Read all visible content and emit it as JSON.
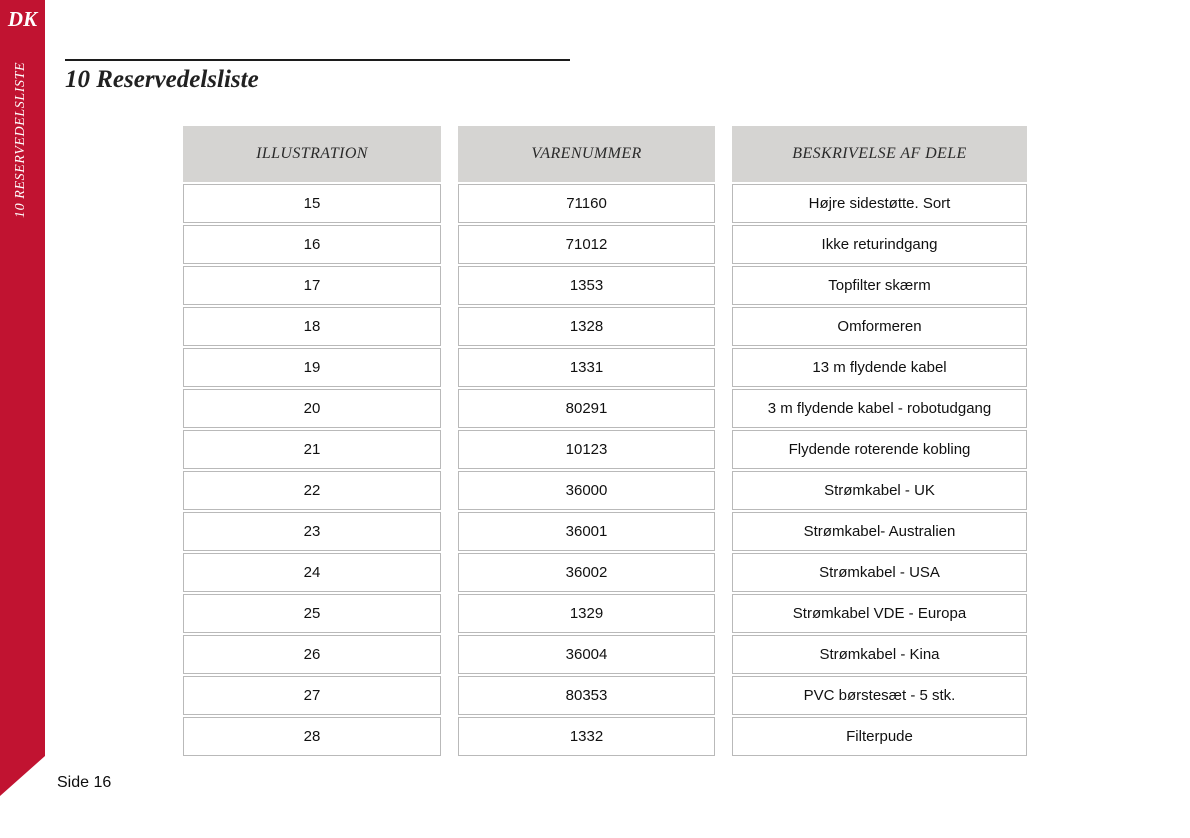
{
  "colors": {
    "accent": "#c11331",
    "table_header_bg": "#d5d4d2",
    "table_border": "#b9b9b9"
  },
  "sidebar": {
    "country_code": "DK",
    "section_label": "10  RESERVEDELSLISTE"
  },
  "heading": {
    "title": "10 Reservedelsliste"
  },
  "table": {
    "columns": [
      "ILLUSTRATION",
      "VARENUMMER",
      "BESKRIVELSE AF DELE"
    ],
    "rows": [
      [
        "15",
        "71160",
        "Højre sidestøtte. Sort"
      ],
      [
        "16",
        "71012",
        "Ikke returindgang"
      ],
      [
        "17",
        "1353",
        "Topfilter skærm"
      ],
      [
        "18",
        "1328",
        "Omformeren"
      ],
      [
        "19",
        "1331",
        "13 m flydende kabel"
      ],
      [
        "20",
        "80291",
        "3 m flydende kabel - robotudgang"
      ],
      [
        "21",
        "10123",
        "Flydende roterende kobling"
      ],
      [
        "22",
        "36000",
        "Strømkabel - UK"
      ],
      [
        "23",
        "36001",
        "Strømkabel- Australien"
      ],
      [
        "24",
        "36002",
        "Strømkabel - USA"
      ],
      [
        "25",
        "1329",
        "Strømkabel VDE - Europa"
      ],
      [
        "26",
        "36004",
        "Strømkabel - Kina"
      ],
      [
        "27",
        "80353",
        "PVC børstesæt - 5 stk."
      ],
      [
        "28",
        "1332",
        "Filterpude"
      ]
    ]
  },
  "footer": {
    "page_label": "Side 16"
  }
}
